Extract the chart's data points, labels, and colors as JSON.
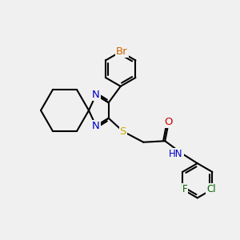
{
  "background_color": "#f0f0f0",
  "bond_color": "#000000",
  "bond_width": 1.5,
  "atom_colors": {
    "N": "#0000cc",
    "S": "#ccaa00",
    "O": "#cc0000",
    "Br": "#cc6600",
    "Cl": "#006600",
    "F": "#006600",
    "H": "#0000cc"
  },
  "font_size": 8.5,
  "fig_width": 3.0,
  "fig_height": 3.0,
  "dpi": 100
}
